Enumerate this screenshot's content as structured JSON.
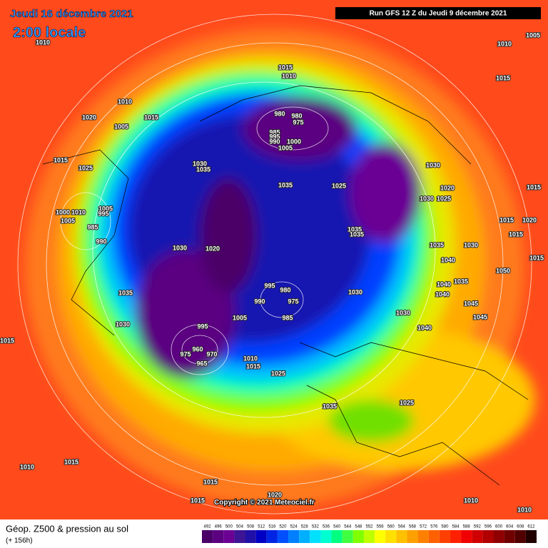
{
  "header": {
    "date": "Jeudi 16 décembre 2021",
    "time": "2:00 locale",
    "run": "Run GFS 12 Z du Jeudi 9 décembre 2021"
  },
  "footer": {
    "title": "Géop. Z500 & pression au sol",
    "lead": "(+ 156h)",
    "copyright": "Copyright © 2021 Meteociel.fr"
  },
  "scale": [
    {
      "value": 492,
      "color": "#4b0068"
    },
    {
      "value": 496,
      "color": "#5a0080"
    },
    {
      "value": 500,
      "color": "#6a0094"
    },
    {
      "value": 504,
      "color": "#3c1494"
    },
    {
      "value": 508,
      "color": "#2010a8"
    },
    {
      "value": 512,
      "color": "#0000c4"
    },
    {
      "value": 516,
      "color": "#0024e4"
    },
    {
      "value": 520,
      "color": "#0050ff"
    },
    {
      "value": 524,
      "color": "#0080ff"
    },
    {
      "value": 528,
      "color": "#00b0ff"
    },
    {
      "value": 532,
      "color": "#00e0ff"
    },
    {
      "value": 536,
      "color": "#00ffd0"
    },
    {
      "value": 540,
      "color": "#00ff80"
    },
    {
      "value": 544,
      "color": "#40ff40"
    },
    {
      "value": 548,
      "color": "#80ff00"
    },
    {
      "value": 552,
      "color": "#c0ff00"
    },
    {
      "value": 556,
      "color": "#ffff00"
    },
    {
      "value": 560,
      "color": "#ffe000"
    },
    {
      "value": 564,
      "color": "#ffc000"
    },
    {
      "value": 568,
      "color": "#ffa000"
    },
    {
      "value": 572,
      "color": "#ff8000"
    },
    {
      "value": 576,
      "color": "#ff6000"
    },
    {
      "value": 580,
      "color": "#ff4000"
    },
    {
      "value": 584,
      "color": "#ff2000"
    },
    {
      "value": 588,
      "color": "#f00000"
    },
    {
      "value": 592,
      "color": "#d00000"
    },
    {
      "value": 596,
      "color": "#b00000"
    },
    {
      "value": 600,
      "color": "#900000"
    },
    {
      "value": 604,
      "color": "#700000"
    },
    {
      "value": 608,
      "color": "#500000"
    },
    {
      "value": 612,
      "color": "#200000"
    }
  ],
  "pressure_labels": [
    "1010",
    "1015",
    "1010",
    "1010",
    "1015",
    "1020",
    "1005",
    "980",
    "980",
    "975",
    "985",
    "995",
    "990",
    "1000",
    "1005",
    "1015",
    "1025",
    "1030",
    "1035",
    "1035",
    "1025",
    "1030",
    "1020",
    "1030",
    "1025",
    "1005",
    "1000",
    "1010",
    "995",
    "1005",
    "985",
    "990",
    "1030",
    "1020",
    "1035",
    "1035",
    "1035",
    "1030",
    "1015",
    "1020",
    "1015",
    "1040",
    "1035",
    "995",
    "980",
    "975",
    "990",
    "985",
    "1030",
    "1040",
    "1035",
    "1040",
    "1045",
    "1045",
    "1030",
    "1040",
    "1030",
    "1005",
    "995",
    "960",
    "970",
    "975",
    "965",
    "1010",
    "1015",
    "1025",
    "1035",
    "1025",
    "1010",
    "1015",
    "1015",
    "1020",
    "1015",
    "1010",
    "1010",
    "1015",
    "1005",
    "1010",
    "1015",
    "1015",
    "1015",
    "1050"
  ]
}
